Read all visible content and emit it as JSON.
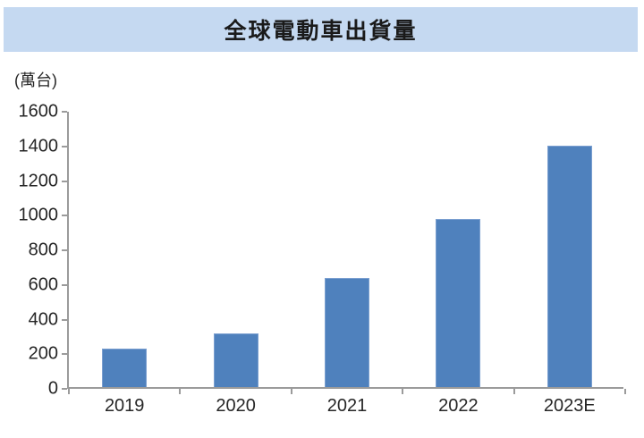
{
  "chart_data": {
    "type": "bar",
    "title": "全球電動車出貨量",
    "ylabel": "(萬台)",
    "xlabel": "",
    "categories": [
      "2019",
      "2020",
      "2021",
      "2022",
      "2023E"
    ],
    "values": [
      220,
      310,
      630,
      970,
      1395
    ],
    "ylim": [
      0,
      1600
    ],
    "ytick_step": 200,
    "grid": false,
    "legend_position": "none",
    "colors": {
      "bar_fill": "#4F81BD",
      "bar_border": "#7B9FD0",
      "banner_background": "#C5D9F1",
      "axis_line": "#9b9b9b",
      "text": "#262626",
      "title_text": "#1a1a1a"
    }
  }
}
